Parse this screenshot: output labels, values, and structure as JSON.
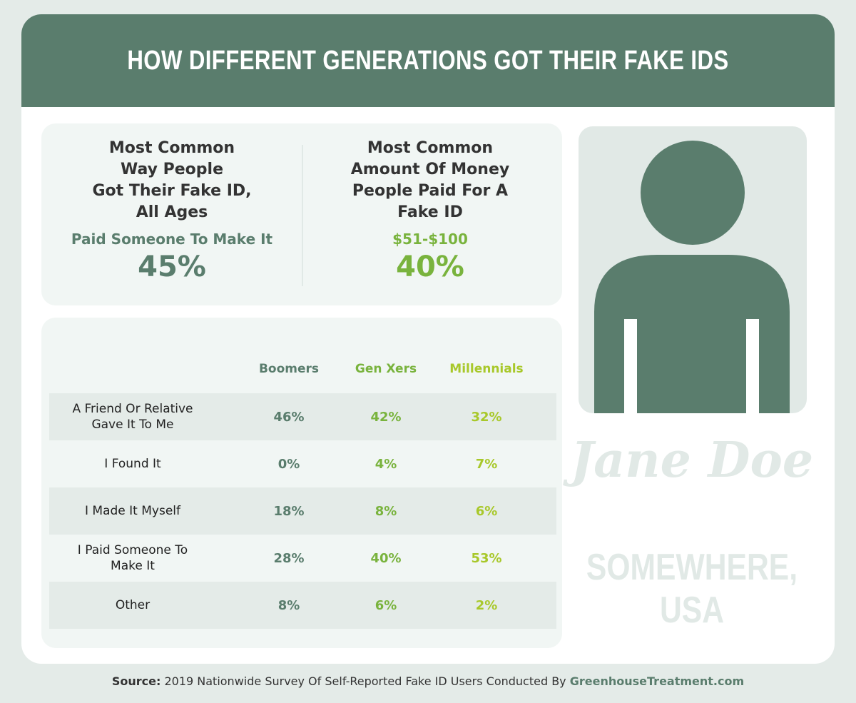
{
  "header": {
    "title": "HOW DIFFERENT GENERATIONS GOT THEIR FAKE IDS"
  },
  "stats": [
    {
      "heading": [
        "Most Common",
        "Way People",
        "Got Their Fake ID,",
        "All Ages"
      ],
      "answer": "Paid Someone To Make It",
      "value": "45%"
    },
    {
      "heading": [
        "Most Common",
        "Amount Of Money",
        "People Paid For A",
        "Fake ID"
      ],
      "answer": "$51-$100",
      "value": "40%"
    }
  ],
  "table": {
    "columns": [
      "Boomers",
      "Gen Xers",
      "Millennials"
    ],
    "rows": [
      {
        "label": [
          "A Friend Or Relative",
          "Gave It To Me"
        ],
        "values": [
          "46%",
          "42%",
          "32%"
        ]
      },
      {
        "label": [
          "I Found It"
        ],
        "values": [
          "0%",
          "4%",
          "7%"
        ]
      },
      {
        "label": [
          "I Made It Myself"
        ],
        "values": [
          "18%",
          "8%",
          "6%"
        ]
      },
      {
        "label": [
          "I Paid Someone To",
          "Make It"
        ],
        "values": [
          "28%",
          "40%",
          "53%"
        ]
      },
      {
        "label": [
          "Other"
        ],
        "values": [
          "8%",
          "6%",
          "2%"
        ]
      }
    ]
  },
  "card": {
    "name": "Jane Doe",
    "location": "SOMEWHERE, USA"
  },
  "source": {
    "label": "Source:",
    "text": "2019 Nationwide Survey Of Self-Reported Fake ID Users Conducted By",
    "link": "GreenhouseTreatment.com"
  }
}
